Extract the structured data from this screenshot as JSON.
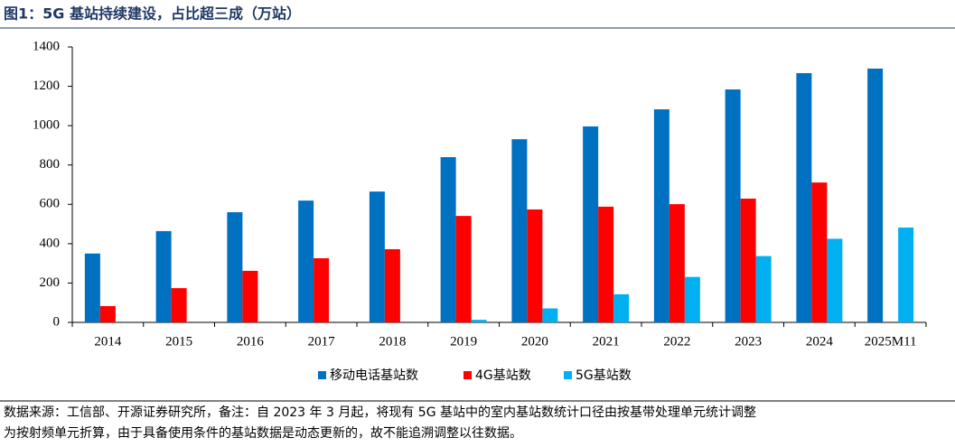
{
  "chart_data": {
    "type": "bar",
    "title": "图1：5G 基站持续建设，占比超三成（万站）",
    "categories": [
      "2014",
      "2015",
      "2016",
      "2017",
      "2018",
      "2019",
      "2020",
      "2021",
      "2022",
      "2023",
      "2024",
      "2025M11"
    ],
    "series": [
      {
        "name": "移动电话基站数",
        "color": "#0070c0",
        "values": [
          350,
          464,
          560,
          619,
          665,
          840,
          931,
          996,
          1083,
          1184,
          1267,
          1290
        ]
      },
      {
        "name": "4G基站数",
        "color": "#ff0000",
        "values": [
          83,
          174,
          262,
          326,
          372,
          541,
          574,
          588,
          601,
          629,
          711,
          null
        ]
      },
      {
        "name": "5G基站数",
        "color": "#00b0f0",
        "values": [
          null,
          null,
          null,
          null,
          null,
          13,
          71,
          143,
          231,
          337,
          425,
          482
        ]
      }
    ],
    "ylim": [
      0,
      1400
    ],
    "yticks": [
      0,
      200,
      400,
      600,
      800,
      1000,
      1200,
      1400
    ],
    "note_lines": [
      "数据来源：工信部、开源证券研究所，备注：自 2023 年 3 月起，将现有 5G 基站中的室内基站数统计口径由按基带处理单元统计调整",
      "为按射频单元折算，由于具备使用条件的基站数据是动态更新的，故不能追溯调整以往数据。"
    ]
  }
}
